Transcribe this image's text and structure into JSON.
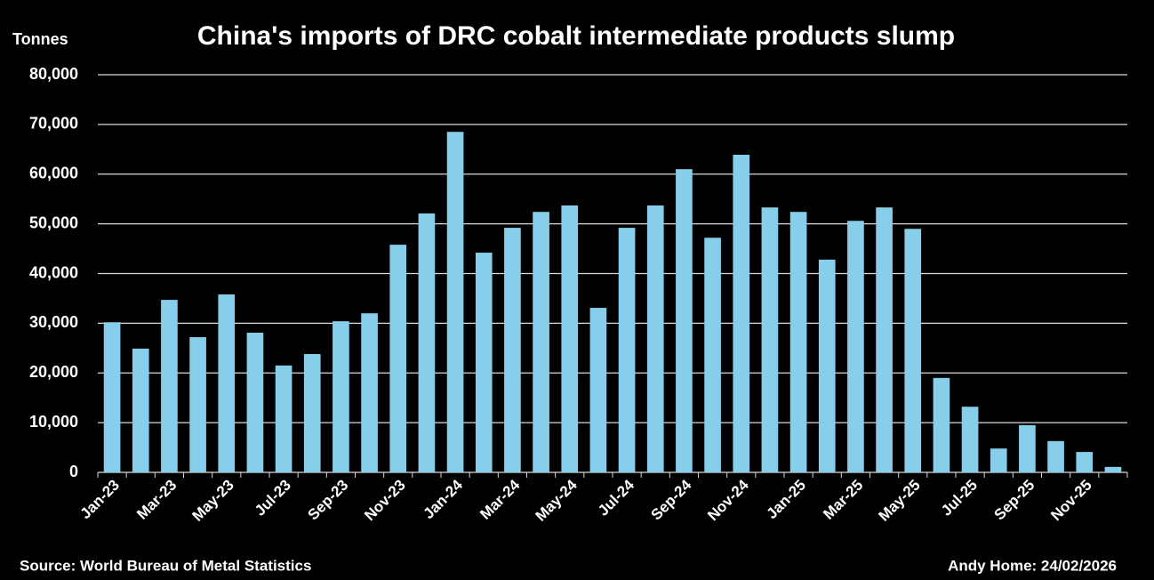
{
  "chart_data": {
    "type": "bar",
    "title": "China's imports of DRC cobalt intermediate products slump",
    "y_axis_label": "Tonnes",
    "source": "Source: World Bureau of Metal Statistics",
    "credit": "Andy Home: 24/02/2026",
    "categories": [
      "Jan-23",
      null,
      "Mar-23",
      null,
      "May-23",
      null,
      "Jul-23",
      null,
      "Sep-23",
      null,
      "Nov-23",
      null,
      "Jan-24",
      null,
      "Mar-24",
      null,
      "May-24",
      null,
      "Jul-24",
      null,
      "Sep-24",
      null,
      "Nov-24",
      null,
      "Jan-25",
      null,
      "Mar-25",
      null,
      "May-25",
      null,
      "Jul-25",
      null,
      "Sep-25",
      null,
      "Nov-25",
      null
    ],
    "values": [
      30200,
      24900,
      34700,
      27200,
      35800,
      28100,
      21500,
      23800,
      30400,
      32000,
      45800,
      52100,
      68500,
      44200,
      49200,
      52400,
      53700,
      33100,
      49200,
      53700,
      61000,
      47200,
      63900,
      53300,
      52400,
      42800,
      50600,
      53300,
      49000,
      19000,
      13200,
      4800,
      9500,
      6300,
      4100,
      1100
    ],
    "color": "#87ceeb",
    "ylim": [
      0,
      80000
    ],
    "yticks": [
      0,
      {
        "value": 10000,
        "label": "10,000"
      },
      {
        "value": 20000,
        "label": "20,000"
      },
      {
        "value": 30000,
        "label": "30,000"
      },
      {
        "value": 40000,
        "label": "40,000"
      },
      {
        "value": 50000,
        "label": "50,000"
      },
      {
        "value": 60000,
        "label": "60,000"
      },
      {
        "value": 70000,
        "label": "70,000"
      },
      {
        "value": 80000,
        "label": "80,000"
      }
    ],
    "grid": true
  }
}
